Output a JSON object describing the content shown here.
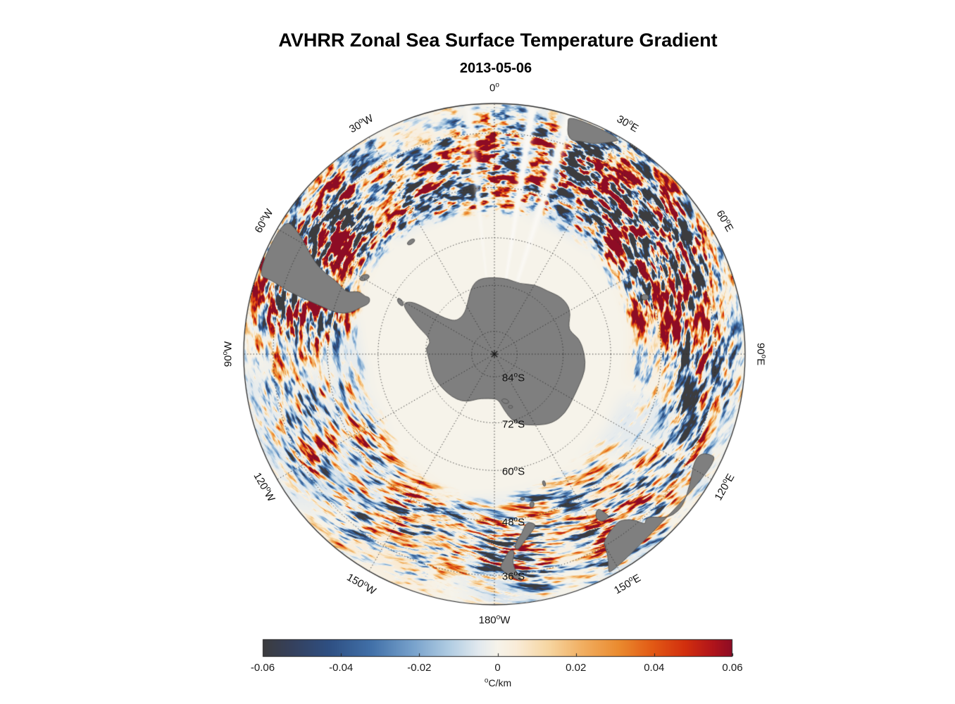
{
  "chart_data": {
    "type": "heatmap",
    "title": "AVHRR Zonal Sea Surface Temperature Gradient",
    "subtitle": "2013-05-06",
    "projection": "south polar stereographic",
    "boundary_latitude": -30,
    "pole_marker": "*",
    "units": "°C/km",
    "value_range": [
      -0.06,
      0.06
    ],
    "grid": {
      "parallels": [
        -84,
        -72,
        -60,
        -48,
        -36
      ],
      "meridian_step_deg": 30,
      "style": "dotted"
    },
    "meridian_labels": [
      {
        "text": "0°",
        "az": 0,
        "rot": 0
      },
      {
        "text": "30°E",
        "az": 30,
        "rot": 30
      },
      {
        "text": "60°E",
        "az": 60,
        "rot": 60
      },
      {
        "text": "90°E",
        "az": 90,
        "rot": 90
      },
      {
        "text": "120°E",
        "az": 120,
        "rot": -60
      },
      {
        "text": "150°E",
        "az": 150,
        "rot": -30
      },
      {
        "text": "180°W",
        "az": 180,
        "rot": 0
      },
      {
        "text": "150°W",
        "az": 210,
        "rot": 30
      },
      {
        "text": "120°W",
        "az": 240,
        "rot": 60
      },
      {
        "text": "90°W",
        "az": 270,
        "rot": -90
      },
      {
        "text": "60°W",
        "az": 300,
        "rot": -60
      },
      {
        "text": "30°W",
        "az": 330,
        "rot": -30
      }
    ],
    "parallel_labels": [
      {
        "text": "84°S",
        "lat": -84
      },
      {
        "text": "72°S",
        "lat": -72
      },
      {
        "text": "60°S",
        "lat": -60
      },
      {
        "text": "48°S",
        "lat": -48
      },
      {
        "text": "36°S",
        "lat": -36
      }
    ],
    "colorbar": {
      "label": "°C/km",
      "ticks": [
        "-0.06",
        "-0.04",
        "-0.02",
        "0",
        "0.02",
        "0.04",
        "0.06"
      ],
      "min": -0.06,
      "max": 0.06,
      "stops": [
        {
          "t": 0.0,
          "c": "#3c3c3e"
        },
        {
          "t": 0.06,
          "c": "#35405c"
        },
        {
          "t": 0.14,
          "c": "#2e4f82"
        },
        {
          "t": 0.23,
          "c": "#4170a8"
        },
        {
          "t": 0.32,
          "c": "#78a2cc"
        },
        {
          "t": 0.4,
          "c": "#b3cee3"
        },
        {
          "t": 0.46,
          "c": "#e2e9ee"
        },
        {
          "t": 0.5,
          "c": "#f6f3ea"
        },
        {
          "t": 0.54,
          "c": "#f9ecd8"
        },
        {
          "t": 0.61,
          "c": "#f6d5a0"
        },
        {
          "t": 0.68,
          "c": "#f1af62"
        },
        {
          "t": 0.76,
          "c": "#ea8a2e"
        },
        {
          "t": 0.83,
          "c": "#e25a15"
        },
        {
          "t": 0.9,
          "c": "#d22f0e"
        },
        {
          "t": 0.96,
          "c": "#b0141b"
        },
        {
          "t": 1.0,
          "c": "#8d0c25"
        }
      ]
    },
    "colors": {
      "land": "#7f7f7f",
      "coastline": "#4f4f4f",
      "graticule": "#2b2b2b",
      "ocean_background": "#f6f3ea",
      "page_background": "#ffffff"
    },
    "land_features": [
      "Antarctica",
      "South America",
      "Africa",
      "Australia",
      "Tasmania",
      "New Zealand",
      "Falkland Islands",
      "South Georgia",
      "Kerguelen"
    ]
  }
}
